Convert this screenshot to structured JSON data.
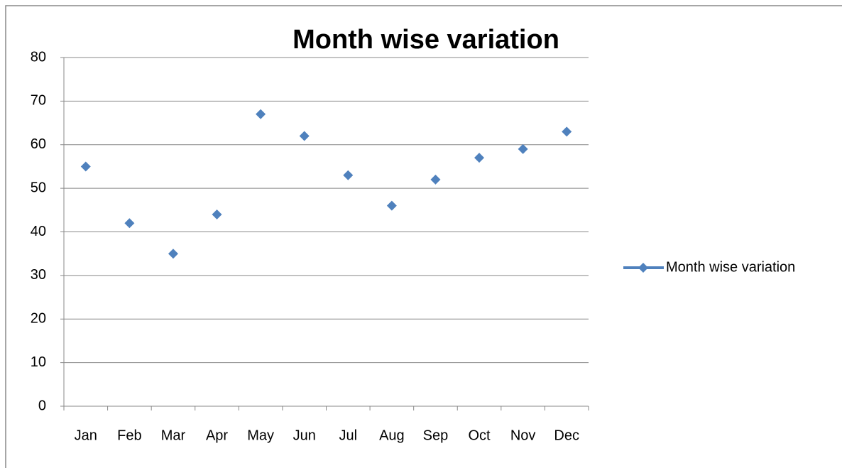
{
  "chart_data": {
    "type": "line",
    "title": "Month wise variation",
    "categories": [
      "Jan",
      "Feb",
      "Mar",
      "Apr",
      "May",
      "Jun",
      "Jul",
      "Aug",
      "Sep",
      "Oct",
      "Nov",
      "Dec"
    ],
    "series": [
      {
        "name": "Month wise variation",
        "color": "#4f81bd",
        "values": [
          55,
          42,
          35,
          44,
          67,
          62,
          53,
          46,
          52,
          57,
          59,
          63
        ]
      }
    ],
    "ylim": [
      0,
      80
    ],
    "yticks": [
      0,
      10,
      20,
      30,
      40,
      50,
      60,
      70,
      80
    ],
    "grid": true,
    "legend": "right"
  }
}
